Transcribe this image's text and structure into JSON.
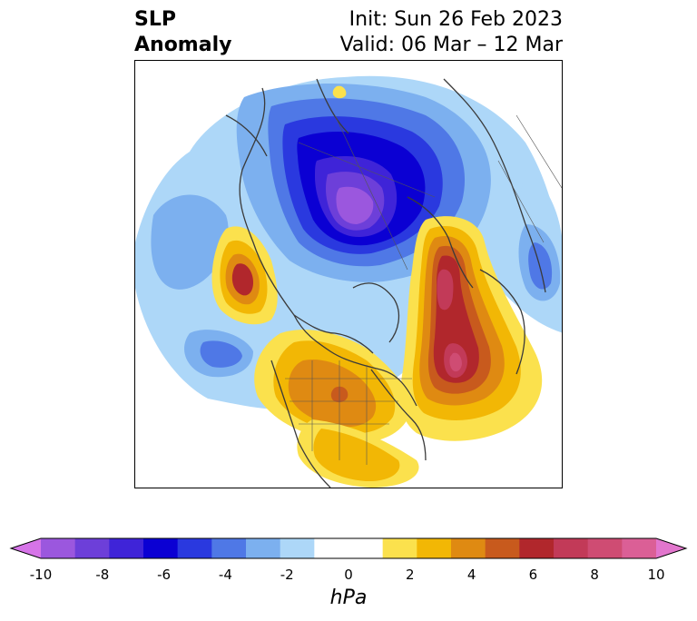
{
  "title": {
    "left_line1": "SLP",
    "left_line2": "Anomaly",
    "right_line1": "Init: Sun 26 Feb 2023",
    "right_line2": "Valid: 06 Mar – 12 Mar"
  },
  "colorbar": {
    "unit": "hPa",
    "tick_labels": [
      "-10",
      "-8",
      "-6",
      "-4",
      "-2",
      "0",
      "2",
      "4",
      "6",
      "8",
      "10"
    ],
    "colors": [
      "#d674e8",
      "#9b57de",
      "#6d3fd9",
      "#3f24d8",
      "#0b00d3",
      "#2a39df",
      "#4f78e6",
      "#7cb0ef",
      "#add7f8",
      "#ffffff",
      "#ffffff",
      "#fbe14d",
      "#f2b705",
      "#df8a12",
      "#c85a1d",
      "#b1272c",
      "#c23a58",
      "#cf4c73",
      "#db5f96",
      "#e276cd"
    ],
    "min": -10,
    "max": 10,
    "extend": "both"
  }
}
